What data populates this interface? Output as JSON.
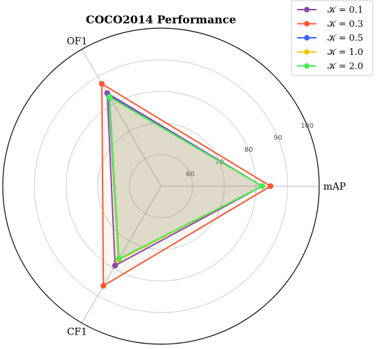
{
  "chart_data": {
    "type": "radar",
    "title": "COCO2014 Performance",
    "axes": [
      "mAP",
      "OF1",
      "CF1"
    ],
    "r_range": [
      50,
      100
    ],
    "r_ticks": [
      60,
      70,
      80,
      90,
      100
    ],
    "grid": true,
    "legend_position": "top-right",
    "series": [
      {
        "name": "𝒦  = 0.1",
        "color": "#8e44ad",
        "values": [
          82.0,
          84.0,
          79.0
        ]
      },
      {
        "name": "𝒦  = 0.3",
        "color": "#ff5733",
        "values": [
          84.6,
          87.4,
          86.4
        ]
      },
      {
        "name": "𝒦  = 0.5",
        "color": "#3366ff",
        "values": [
          82.0,
          83.0,
          77.0
        ]
      },
      {
        "name": "𝒦  = 1.0",
        "color": "#f1c40f",
        "values": [
          82.0,
          82.6,
          77.0
        ]
      },
      {
        "name": "𝒦  = 2.0",
        "color": "#44ee55",
        "values": [
          82.0,
          82.5,
          76.5
        ]
      }
    ],
    "fill_color": "#8a7f3a"
  }
}
